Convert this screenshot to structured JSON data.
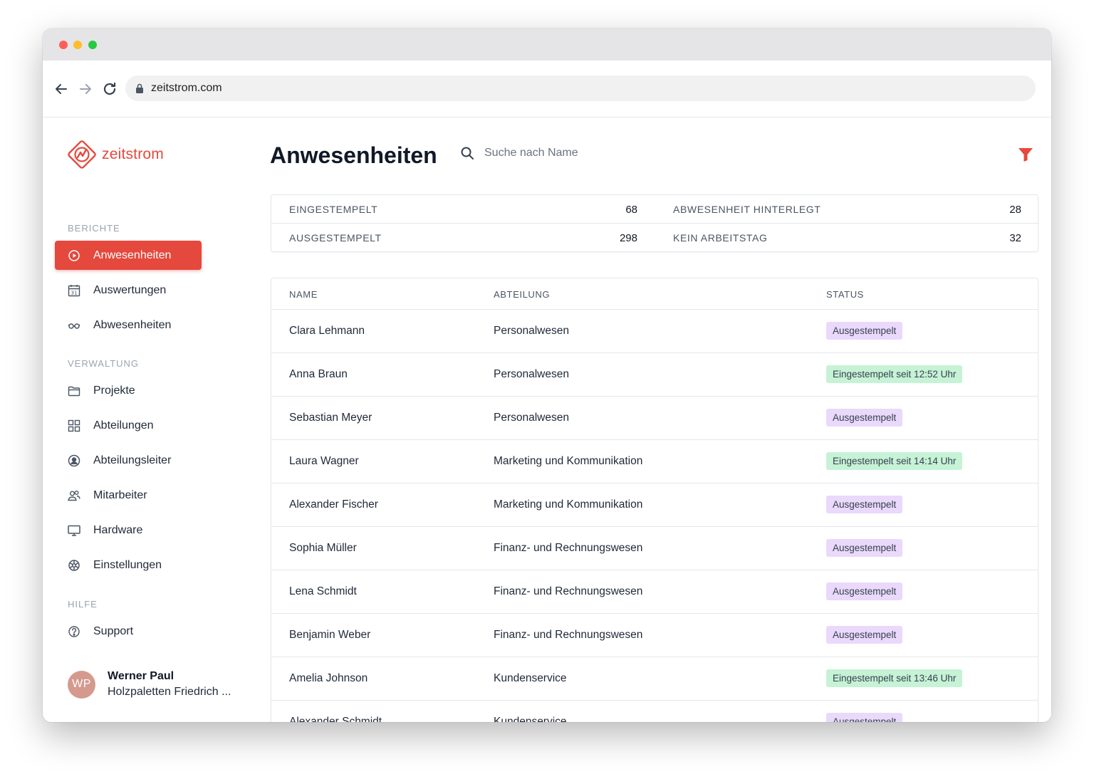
{
  "browser": {
    "url": "zeitstrom.com"
  },
  "brand": {
    "name": "zeitstrom",
    "accent_color": "#e5483d"
  },
  "sidebar": {
    "sections": [
      {
        "label": "BERICHTE",
        "items": [
          {
            "label": "Anwesenheiten",
            "icon": "play-circle-icon",
            "active": true
          },
          {
            "label": "Auswertungen",
            "icon": "calendar-icon",
            "active": false
          },
          {
            "label": "Abwesenheiten",
            "icon": "glasses-icon",
            "active": false
          }
        ]
      },
      {
        "label": "VERWALTUNG",
        "items": [
          {
            "label": "Projekte",
            "icon": "folder-icon",
            "active": false
          },
          {
            "label": "Abteilungen",
            "icon": "grid-icon",
            "active": false
          },
          {
            "label": "Abteilungsleiter",
            "icon": "user-circle-icon",
            "active": false
          },
          {
            "label": "Mitarbeiter",
            "icon": "users-icon",
            "active": false
          },
          {
            "label": "Hardware",
            "icon": "monitor-icon",
            "active": false
          },
          {
            "label": "Einstellungen",
            "icon": "gear-icon",
            "active": false
          }
        ]
      },
      {
        "label": "HILFE",
        "items": [
          {
            "label": "Support",
            "icon": "help-circle-icon",
            "active": false
          }
        ]
      }
    ],
    "user": {
      "initials": "WP",
      "name": "Werner Paul",
      "company": "Holzpaletten Friedrich ..."
    }
  },
  "main": {
    "title": "Anwesenheiten",
    "search_placeholder": "Suche nach Name",
    "stats": [
      {
        "label": "EINGESTEMPELT",
        "value": "68"
      },
      {
        "label": "ABWESENHEIT HINTERLEGT",
        "value": "28"
      },
      {
        "label": "AUSGESTEMPELT",
        "value": "298"
      },
      {
        "label": "KEIN ARBEITSTAG",
        "value": "32"
      }
    ],
    "table": {
      "columns": [
        "NAME",
        "ABTEILUNG",
        "STATUS"
      ],
      "rows": [
        {
          "name": "Clara Lehmann",
          "department": "Personalwesen",
          "status": "Ausgestempelt",
          "state": "out"
        },
        {
          "name": "Anna Braun",
          "department": "Personalwesen",
          "status": "Eingestempelt seit 12:52 Uhr",
          "state": "in"
        },
        {
          "name": "Sebastian Meyer",
          "department": "Personalwesen",
          "status": "Ausgestempelt",
          "state": "out"
        },
        {
          "name": "Laura Wagner",
          "department": "Marketing und Kommunikation",
          "status": "Eingestempelt seit 14:14 Uhr",
          "state": "in"
        },
        {
          "name": "Alexander Fischer",
          "department": "Marketing und Kommunikation",
          "status": "Ausgestempelt",
          "state": "out"
        },
        {
          "name": "Sophia Müller",
          "department": "Finanz- und Rechnungswesen",
          "status": "Ausgestempelt",
          "state": "out"
        },
        {
          "name": "Lena Schmidt",
          "department": "Finanz- und Rechnungswesen",
          "status": "Ausgestempelt",
          "state": "out"
        },
        {
          "name": "Benjamin Weber",
          "department": "Finanz- und Rechnungswesen",
          "status": "Ausgestempelt",
          "state": "out"
        },
        {
          "name": "Amelia Johnson",
          "department": "Kundenservice",
          "status": "Eingestempelt seit 13:46 Uhr",
          "state": "in"
        },
        {
          "name": "Alexander Schmidt",
          "department": "Kundenservice",
          "status": "Ausgestempelt",
          "state": "out"
        }
      ]
    }
  }
}
